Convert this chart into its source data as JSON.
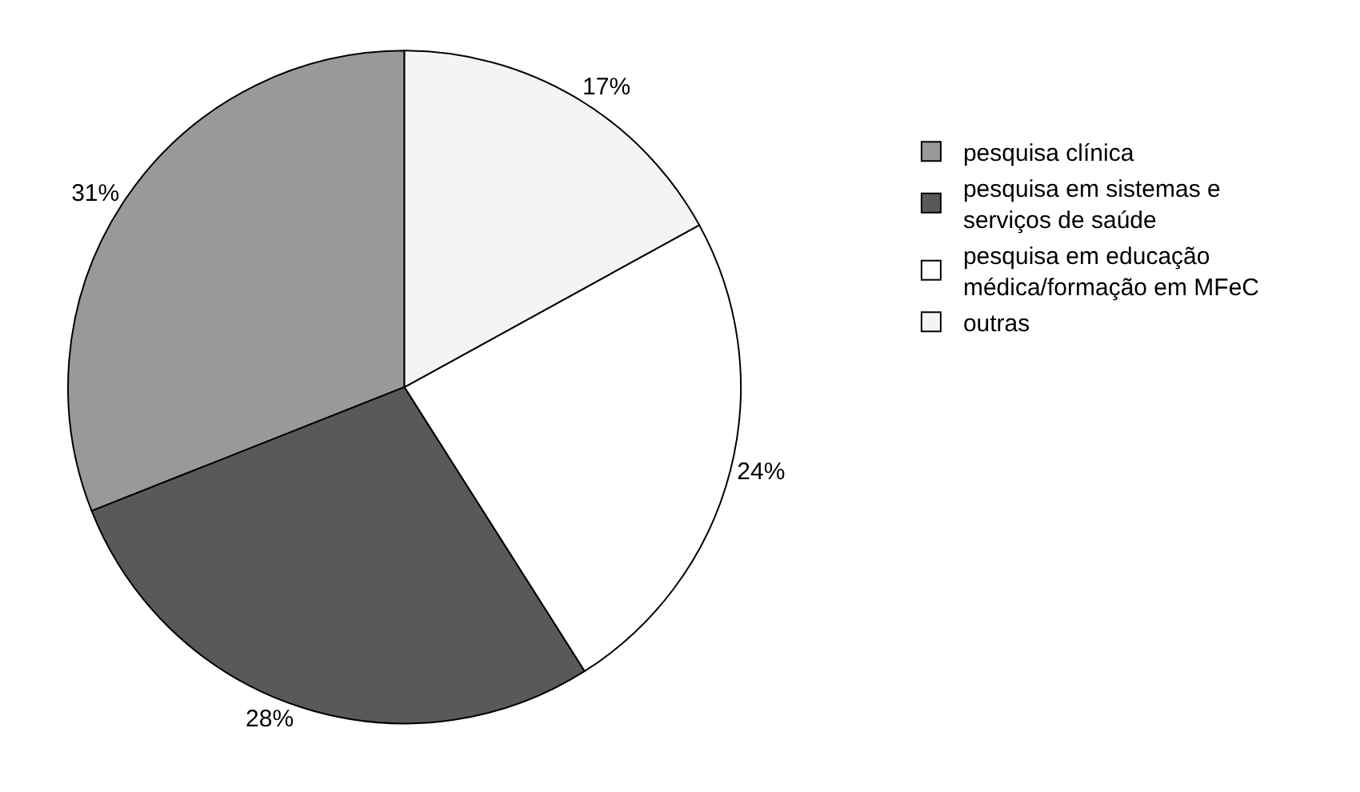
{
  "chart_data": {
    "type": "pie",
    "categories": [
      "pesquisa clínica",
      "pesquisa em sistemas e serviços de saúde",
      "pesquisa em educação médica/formação em MFeC",
      "outras"
    ],
    "values": [
      31,
      28,
      24,
      17
    ],
    "colors": [
      "#999999",
      "#595959",
      "#ffffff",
      "#f4f4f4"
    ],
    "value_labels": [
      "31%",
      "28%",
      "24%",
      "17%"
    ],
    "legend": "right"
  }
}
